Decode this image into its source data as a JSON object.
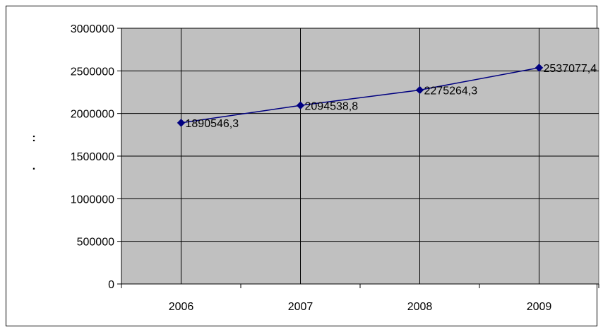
{
  "chart_data": {
    "type": "line",
    "title": "",
    "xlabel": "",
    "ylabel": ": .",
    "categories": [
      "2006",
      "2007",
      "2008",
      "2009"
    ],
    "series": [
      {
        "values": [
          1890546.3,
          2094538.8,
          2275264.3,
          2537077.4
        ]
      }
    ],
    "data_labels": [
      "1890546,3",
      "2094538,8",
      "2275264,3",
      "2537077,4"
    ],
    "yticks": [
      "0",
      "500000",
      "1000000",
      "1500000",
      "2000000",
      "2500000",
      "3000000"
    ],
    "ylim": [
      0,
      3000000
    ],
    "grid": true,
    "legend": "none",
    "colors": {
      "plot_bg": "#c0c0c0",
      "line": "#000080",
      "grid": "#000000"
    }
  }
}
